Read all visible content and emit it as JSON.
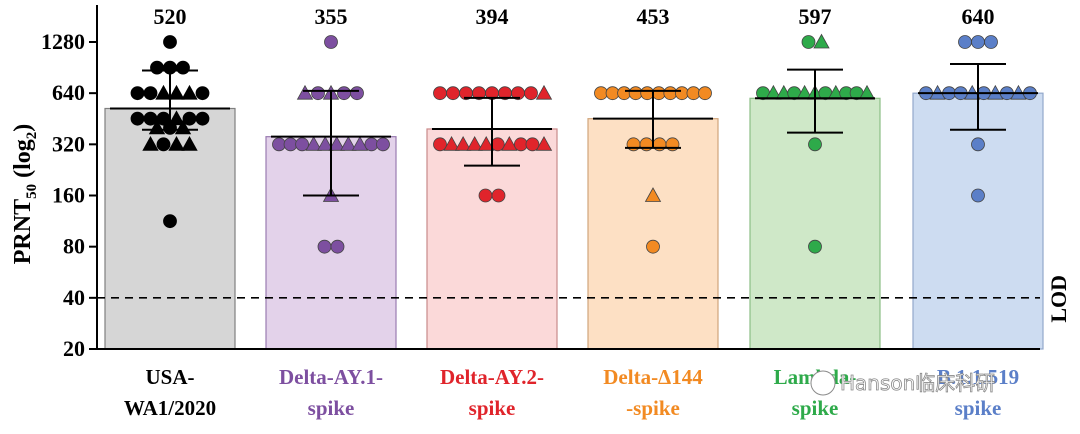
{
  "chart_data": {
    "type": "bar",
    "ylabel": "PRNT",
    "ylabel_sub": "50",
    "ylabel_suffix": " (log",
    "ylabel_sub2": "2",
    "ylabel_end": ")",
    "yscale": "log2",
    "ylim": [
      20,
      1800
    ],
    "yticks": [
      20,
      40,
      80,
      160,
      320,
      640,
      1280
    ],
    "lod": {
      "value": 40,
      "label": "LOD"
    },
    "grid": false,
    "categories": [
      {
        "lines": [
          "USA-",
          "WA1/2020"
        ],
        "color": "#000000",
        "fill": "#d6d6d6",
        "edge": "#7f7f7f",
        "gmt": 520,
        "ci": [
          390,
          870
        ],
        "label_gmt": "520",
        "points": [
          {
            "v": 1280,
            "s": "circle"
          },
          {
            "v": 905,
            "s": "circle"
          },
          {
            "v": 905,
            "s": "circle"
          },
          {
            "v": 905,
            "s": "circle"
          },
          {
            "v": 640,
            "s": "circle"
          },
          {
            "v": 640,
            "s": "circle"
          },
          {
            "v": 640,
            "s": "triangle"
          },
          {
            "v": 640,
            "s": "triangle"
          },
          {
            "v": 640,
            "s": "triangle"
          },
          {
            "v": 640,
            "s": "circle"
          },
          {
            "v": 453,
            "s": "circle"
          },
          {
            "v": 453,
            "s": "circle"
          },
          {
            "v": 453,
            "s": "circle"
          },
          {
            "v": 453,
            "s": "triangle"
          },
          {
            "v": 453,
            "s": "circle"
          },
          {
            "v": 453,
            "s": "circle"
          },
          {
            "v": 400,
            "s": "triangle"
          },
          {
            "v": 400,
            "s": "circle"
          },
          {
            "v": 400,
            "s": "triangle"
          },
          {
            "v": 320,
            "s": "triangle"
          },
          {
            "v": 320,
            "s": "circle"
          },
          {
            "v": 320,
            "s": "triangle"
          },
          {
            "v": 320,
            "s": "triangle"
          },
          {
            "v": 113,
            "s": "circle"
          }
        ]
      },
      {
        "lines": [
          "Delta-AY.1-",
          "spike"
        ],
        "color": "#7d4fa0",
        "fill": "#e3d2ea",
        "edge": "#9a7bb1",
        "gmt": 355,
        "ci": [
          160,
          660
        ],
        "label_gmt": "355",
        "points": [
          {
            "v": 1280,
            "s": "circle"
          },
          {
            "v": 640,
            "s": "triangle"
          },
          {
            "v": 640,
            "s": "circle"
          },
          {
            "v": 640,
            "s": "triangle"
          },
          {
            "v": 640,
            "s": "circle"
          },
          {
            "v": 640,
            "s": "circle"
          },
          {
            "v": 320,
            "s": "circle"
          },
          {
            "v": 320,
            "s": "circle"
          },
          {
            "v": 320,
            "s": "circle"
          },
          {
            "v": 320,
            "s": "triangle"
          },
          {
            "v": 320,
            "s": "triangle"
          },
          {
            "v": 320,
            "s": "triangle"
          },
          {
            "v": 320,
            "s": "triangle"
          },
          {
            "v": 320,
            "s": "triangle"
          },
          {
            "v": 320,
            "s": "circle"
          },
          {
            "v": 320,
            "s": "circle"
          },
          {
            "v": 160,
            "s": "triangle"
          },
          {
            "v": 80,
            "s": "circle"
          },
          {
            "v": 80,
            "s": "circle"
          }
        ]
      },
      {
        "lines": [
          "Delta-AY.2-",
          "spike"
        ],
        "color": "#e0242b",
        "fill": "#fbd9d9",
        "edge": "#c98a8a",
        "gmt": 394,
        "ci": [
          240,
          600
        ],
        "label_gmt": "394",
        "points": [
          {
            "v": 640,
            "s": "circle"
          },
          {
            "v": 640,
            "s": "circle"
          },
          {
            "v": 640,
            "s": "circle"
          },
          {
            "v": 640,
            "s": "circle"
          },
          {
            "v": 640,
            "s": "circle"
          },
          {
            "v": 640,
            "s": "circle"
          },
          {
            "v": 640,
            "s": "circle"
          },
          {
            "v": 640,
            "s": "circle"
          },
          {
            "v": 640,
            "s": "triangle"
          },
          {
            "v": 320,
            "s": "circle"
          },
          {
            "v": 320,
            "s": "triangle"
          },
          {
            "v": 320,
            "s": "triangle"
          },
          {
            "v": 320,
            "s": "triangle"
          },
          {
            "v": 320,
            "s": "triangle"
          },
          {
            "v": 320,
            "s": "circle"
          },
          {
            "v": 320,
            "s": "triangle"
          },
          {
            "v": 320,
            "s": "circle"
          },
          {
            "v": 320,
            "s": "circle"
          },
          {
            "v": 320,
            "s": "triangle"
          },
          {
            "v": 160,
            "s": "circle"
          },
          {
            "v": 160,
            "s": "circle"
          }
        ]
      },
      {
        "lines": [
          "Delta-Δ144",
          "-spike"
        ],
        "color": "#f28a22",
        "fill": "#fde0c4",
        "edge": "#d0a57c",
        "gmt": 453,
        "ci": [
          305,
          660
        ],
        "label_gmt": "453",
        "points": [
          {
            "v": 640,
            "s": "circle"
          },
          {
            "v": 640,
            "s": "circle"
          },
          {
            "v": 640,
            "s": "circle"
          },
          {
            "v": 640,
            "s": "circle"
          },
          {
            "v": 640,
            "s": "circle"
          },
          {
            "v": 640,
            "s": "circle"
          },
          {
            "v": 640,
            "s": "circle"
          },
          {
            "v": 640,
            "s": "circle"
          },
          {
            "v": 640,
            "s": "circle"
          },
          {
            "v": 640,
            "s": "circle"
          },
          {
            "v": 320,
            "s": "circle"
          },
          {
            "v": 320,
            "s": "circle"
          },
          {
            "v": 320,
            "s": "circle"
          },
          {
            "v": 320,
            "s": "circle"
          },
          {
            "v": 160,
            "s": "triangle"
          },
          {
            "v": 80,
            "s": "circle"
          }
        ]
      },
      {
        "lines": [
          "Lambda-",
          "spike"
        ],
        "color": "#2eaa4a",
        "fill": "#cfe8c8",
        "edge": "#8cbf86",
        "gmt": 597,
        "ci": [
          375,
          880
        ],
        "label_gmt": "597",
        "points": [
          {
            "v": 1280,
            "s": "circle"
          },
          {
            "v": 1280,
            "s": "triangle"
          },
          {
            "v": 640,
            "s": "circle"
          },
          {
            "v": 640,
            "s": "triangle"
          },
          {
            "v": 640,
            "s": "triangle"
          },
          {
            "v": 640,
            "s": "circle"
          },
          {
            "v": 640,
            "s": "triangle"
          },
          {
            "v": 640,
            "s": "triangle"
          },
          {
            "v": 640,
            "s": "circle"
          },
          {
            "v": 640,
            "s": "triangle"
          },
          {
            "v": 640,
            "s": "circle"
          },
          {
            "v": 640,
            "s": "circle"
          },
          {
            "v": 640,
            "s": "triangle"
          },
          {
            "v": 320,
            "s": "circle"
          },
          {
            "v": 80,
            "s": "circle"
          }
        ]
      },
      {
        "lines": [
          "B.1.1.519",
          "spike"
        ],
        "color": "#5b7fc8",
        "fill": "#cddcf1",
        "edge": "#93a8cb",
        "gmt": 640,
        "ci": [
          390,
          950
        ],
        "label_gmt": "640",
        "points": [
          {
            "v": 1280,
            "s": "circle"
          },
          {
            "v": 1280,
            "s": "circle"
          },
          {
            "v": 1280,
            "s": "circle"
          },
          {
            "v": 640,
            "s": "circle"
          },
          {
            "v": 640,
            "s": "triangle"
          },
          {
            "v": 640,
            "s": "circle"
          },
          {
            "v": 640,
            "s": "circle"
          },
          {
            "v": 640,
            "s": "triangle"
          },
          {
            "v": 640,
            "s": "circle"
          },
          {
            "v": 640,
            "s": "triangle"
          },
          {
            "v": 640,
            "s": "circle"
          },
          {
            "v": 640,
            "s": "triangle"
          },
          {
            "v": 640,
            "s": "circle"
          },
          {
            "v": 320,
            "s": "circle"
          },
          {
            "v": 160,
            "s": "circle"
          }
        ]
      }
    ]
  },
  "watermark": "Hanson临床科研"
}
